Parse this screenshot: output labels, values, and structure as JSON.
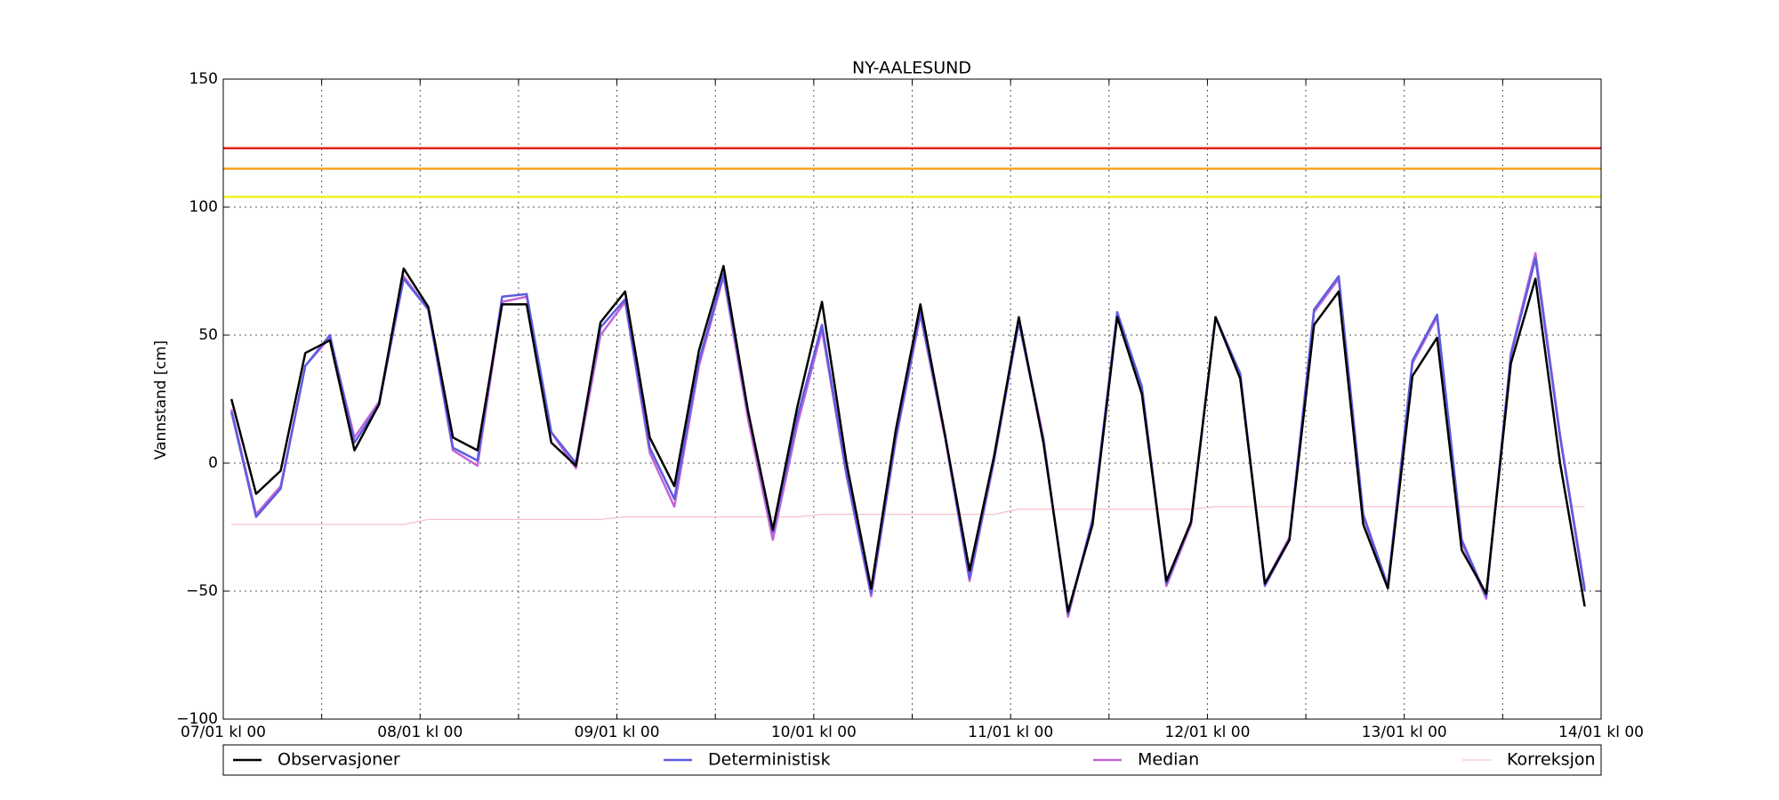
{
  "chart_data": {
    "type": "line",
    "title": "NY-AALESUND",
    "y_label": "Vannstand [cm]",
    "x": [
      1,
      4,
      7,
      10,
      13,
      16,
      19,
      22,
      25,
      28,
      31,
      34,
      37,
      40,
      43,
      46,
      49,
      52,
      55,
      58,
      61,
      64,
      67,
      70,
      73,
      76,
      79,
      82,
      85,
      88,
      91,
      94,
      97,
      100,
      103,
      106,
      109,
      112,
      115,
      118,
      121,
      124,
      127,
      130,
      133,
      136,
      139,
      142,
      145,
      148,
      151,
      154,
      157,
      160,
      163,
      166
    ],
    "xlim": [
      0,
      168
    ],
    "xticks": [
      {
        "value": 0,
        "label": "07/01 kl 00"
      },
      {
        "value": 24,
        "label": "08/01 kl 00"
      },
      {
        "value": 48,
        "label": "09/01 kl 00"
      },
      {
        "value": 72,
        "label": "10/01 kl 00"
      },
      {
        "value": 96,
        "label": "11/01 kl 00"
      },
      {
        "value": 120,
        "label": "12/01 kl 00"
      },
      {
        "value": 144,
        "label": "13/01 kl 00"
      },
      {
        "value": 168,
        "label": "14/01 kl 00"
      }
    ],
    "x_minor_ticks": [
      12,
      36,
      60,
      84,
      108,
      132,
      156
    ],
    "ylim": [
      -100,
      150
    ],
    "yticks": [
      {
        "value": -100,
        "label": "−100"
      },
      {
        "value": -50,
        "label": "−50"
      },
      0,
      50,
      100,
      150
    ],
    "grid": true,
    "legend": "bottom-outside",
    "thresholds": [
      {
        "value": 123,
        "color": "#e8201c"
      },
      {
        "value": 115,
        "color": "#f5a623"
      },
      {
        "value": 104,
        "color": "#f2f21c"
      }
    ],
    "series": [
      {
        "name": "Observasjoner",
        "color": "#000000",
        "values": [
          25,
          -12,
          -3,
          43,
          48,
          5,
          23,
          76,
          61,
          10,
          5,
          62,
          62,
          8,
          -1,
          55,
          67,
          10,
          -9,
          44,
          77,
          20,
          -26,
          22,
          63,
          0,
          -49,
          13,
          62,
          11,
          -42,
          3,
          57,
          8,
          -58,
          -24,
          57,
          27,
          -46,
          -23,
          57,
          33,
          -47,
          -30,
          54,
          67,
          -24,
          -49,
          34,
          49,
          -34,
          -51,
          39,
          72,
          0,
          -56
        ]
      },
      {
        "name": "Deterministisk",
        "color": "#5c5ce0",
        "values": [
          20,
          -21,
          -10,
          38,
          50,
          8,
          23,
          72,
          60,
          6,
          1,
          65,
          66,
          12,
          0,
          53,
          64,
          6,
          -14,
          40,
          74,
          20,
          -27,
          18,
          54,
          -4,
          -51,
          10,
          59,
          11,
          -45,
          2,
          55,
          9,
          -59,
          -22,
          59,
          30,
          -47,
          -23,
          57,
          35,
          -48,
          -30,
          60,
          73,
          -20,
          -48,
          40,
          58,
          -30,
          -52,
          42,
          80,
          10,
          -50
        ]
      },
      {
        "name": "Median",
        "color": "#c264d6",
        "values": [
          21,
          -20,
          -9,
          38,
          49,
          10,
          24,
          73,
          60,
          5,
          -1,
          63,
          65,
          12,
          -2,
          50,
          63,
          4,
          -17,
          38,
          73,
          17,
          -30,
          15,
          52,
          -5,
          -52,
          9,
          58,
          10,
          -46,
          1,
          56,
          10,
          -60,
          -22,
          58,
          29,
          -48,
          -24,
          57,
          34,
          -47,
          -29,
          59,
          72,
          -21,
          -48,
          39,
          57,
          -31,
          -53,
          43,
          82,
          11,
          -49
        ]
      },
      {
        "name": "Korreksjon",
        "color": "#f5c2cc",
        "values": [
          -24,
          -24,
          -24,
          -24,
          -24,
          -24,
          -24,
          -24,
          -22,
          -22,
          -22,
          -22,
          -22,
          -22,
          -22,
          -22,
          -21,
          -21,
          -21,
          -21,
          -21,
          -21,
          -21,
          -21,
          -20,
          -20,
          -20,
          -20,
          -20,
          -20,
          -20,
          -20,
          -18,
          -18,
          -18,
          -18,
          -18,
          -18,
          -18,
          -18,
          -17,
          -17,
          -17,
          -17,
          -17,
          -17,
          -17,
          -17,
          -17,
          -17,
          -17,
          -17,
          -17,
          -17,
          -17,
          -17
        ]
      }
    ]
  }
}
